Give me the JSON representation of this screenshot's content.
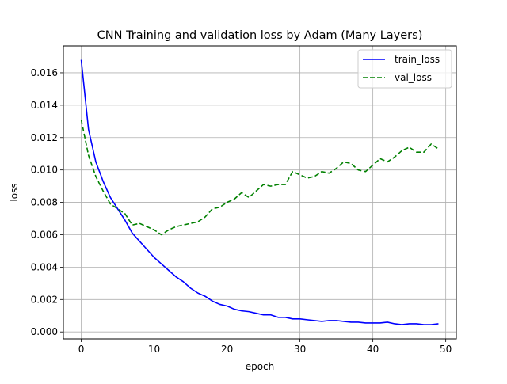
{
  "chart_data": {
    "type": "line",
    "title": "CNN Training and validation loss by Adam (Many Layers)",
    "xlabel": "epoch",
    "ylabel": "loss",
    "xlim": [
      -2.45,
      51.45
    ],
    "ylim": [
      -0.00043,
      0.01766
    ],
    "xticks": [
      0,
      10,
      20,
      30,
      40,
      50
    ],
    "xtick_labels": [
      "0",
      "10",
      "20",
      "30",
      "40",
      "50"
    ],
    "yticks": [
      0.0,
      0.002,
      0.004,
      0.006,
      0.008,
      0.01,
      0.012,
      0.014,
      0.016
    ],
    "ytick_labels": [
      "0.000",
      "0.002",
      "0.004",
      "0.006",
      "0.008",
      "0.010",
      "0.012",
      "0.014",
      "0.016"
    ],
    "grid": true,
    "legend_position": "top-right",
    "x": [
      0,
      1,
      2,
      3,
      4,
      5,
      6,
      7,
      8,
      9,
      10,
      11,
      12,
      13,
      14,
      15,
      16,
      17,
      18,
      19,
      20,
      21,
      22,
      23,
      24,
      25,
      26,
      27,
      28,
      29,
      30,
      31,
      32,
      33,
      34,
      35,
      36,
      37,
      38,
      39,
      40,
      41,
      42,
      43,
      44,
      45,
      46,
      47,
      48,
      49
    ],
    "series": [
      {
        "name": "train_loss",
        "color": "#0000ff",
        "style": "solid",
        "values": [
          0.0168,
          0.0125,
          0.0105,
          0.0093,
          0.0083,
          0.0076,
          0.0069,
          0.0061,
          0.0056,
          0.0051,
          0.0046,
          0.0042,
          0.0038,
          0.0034,
          0.0031,
          0.0027,
          0.0024,
          0.0022,
          0.0019,
          0.0017,
          0.0016,
          0.0014,
          0.0013,
          0.00125,
          0.00115,
          0.00105,
          0.00105,
          0.0009,
          0.0009,
          0.0008,
          0.0008,
          0.00075,
          0.0007,
          0.00065,
          0.0007,
          0.0007,
          0.00065,
          0.0006,
          0.0006,
          0.00055,
          0.00055,
          0.00055,
          0.0006,
          0.0005,
          0.00045,
          0.0005,
          0.0005,
          0.00045,
          0.00045,
          0.0005
        ]
      },
      {
        "name": "val_loss",
        "color": "#008000",
        "style": "dashed",
        "values": [
          0.0131,
          0.0109,
          0.0096,
          0.0087,
          0.0079,
          0.0076,
          0.0073,
          0.0066,
          0.0067,
          0.0065,
          0.0063,
          0.006,
          0.0063,
          0.0065,
          0.0066,
          0.0067,
          0.0068,
          0.0071,
          0.0076,
          0.0077,
          0.008,
          0.0082,
          0.0086,
          0.0083,
          0.0087,
          0.0091,
          0.009,
          0.0091,
          0.0091,
          0.0099,
          0.0097,
          0.0095,
          0.0096,
          0.0099,
          0.0098,
          0.0101,
          0.0105,
          0.0104,
          0.01,
          0.0099,
          0.0103,
          0.0107,
          0.0105,
          0.0108,
          0.0112,
          0.0114,
          0.0111,
          0.0111,
          0.0116,
          0.0113
        ]
      }
    ]
  }
}
